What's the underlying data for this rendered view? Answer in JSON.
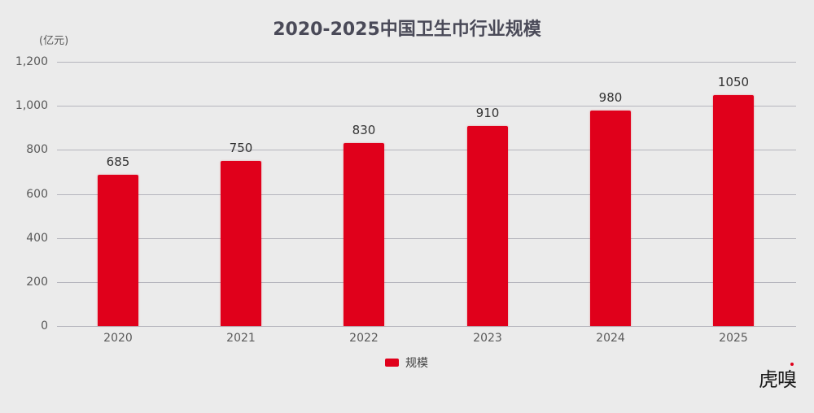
{
  "title": "2020-2025中国卫生巾行业规模",
  "unit_label": "(亿元)",
  "y_ticks": [
    "0",
    "200",
    "400",
    "600",
    "800",
    "1,000",
    "1,200"
  ],
  "legend": {
    "label": "规模",
    "color": "#e0001b"
  },
  "watermark": "虎嗅",
  "colors": {
    "bar": "#e0001b",
    "background": "#ebebeb",
    "title": "#4a4a58",
    "gridline": "#b5b5bd"
  },
  "bars": [
    {
      "year": "2020",
      "value": "685"
    },
    {
      "year": "2021",
      "value": "750"
    },
    {
      "year": "2022",
      "value": "830"
    },
    {
      "year": "2023",
      "value": "910"
    },
    {
      "year": "2024",
      "value": "980"
    },
    {
      "year": "2025",
      "value": "1050"
    }
  ],
  "chart_data": {
    "type": "bar",
    "title": "2020-2025中国卫生巾行业规模",
    "categories": [
      "2020",
      "2021",
      "2022",
      "2023",
      "2024",
      "2025"
    ],
    "series": [
      {
        "name": "规模",
        "values": [
          685,
          750,
          830,
          910,
          980,
          1050
        ],
        "color": "#e0001b"
      }
    ],
    "xlabel": "",
    "ylabel": "(亿元)",
    "ylim": [
      0,
      1200
    ],
    "yticks": [
      0,
      200,
      400,
      600,
      800,
      1000,
      1200
    ],
    "grid": true,
    "legend_position": "bottom",
    "data_labels": true
  }
}
